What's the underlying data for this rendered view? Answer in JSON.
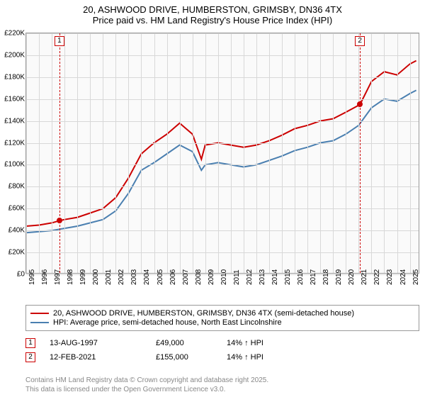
{
  "title": {
    "line1": "20, ASHWOOD DRIVE, HUMBERSTON, GRIMSBY, DN36 4TX",
    "line2": "Price paid vs. HM Land Registry's House Price Index (HPI)",
    "fontsize": 13
  },
  "chart": {
    "type": "line",
    "background_color": "#fafafa",
    "grid_color": "#d8d8d8",
    "border_color": "#999999",
    "x": {
      "min": 1995,
      "max": 2025.8,
      "ticks": [
        1995,
        1996,
        1997,
        1998,
        1999,
        2000,
        2001,
        2002,
        2003,
        2004,
        2005,
        2006,
        2007,
        2008,
        2009,
        2010,
        2011,
        2012,
        2013,
        2014,
        2015,
        2016,
        2017,
        2018,
        2019,
        2020,
        2021,
        2022,
        2023,
        2024,
        2025
      ],
      "labels": [
        "1995",
        "1996",
        "1997",
        "1998",
        "1999",
        "2000",
        "2001",
        "2002",
        "2003",
        "2004",
        "2005",
        "2006",
        "2007",
        "2008",
        "2009",
        "2010",
        "2011",
        "2012",
        "2013",
        "2014",
        "2015",
        "2016",
        "2017",
        "2018",
        "2019",
        "2020",
        "2021",
        "2022",
        "2023",
        "2024",
        "2025"
      ],
      "label_fontsize": 10
    },
    "y": {
      "min": 0,
      "max": 220000,
      "ticks": [
        0,
        20000,
        40000,
        60000,
        80000,
        100000,
        120000,
        140000,
        160000,
        180000,
        200000,
        220000
      ],
      "labels": [
        "£0",
        "£20K",
        "£40K",
        "£60K",
        "£80K",
        "£100K",
        "£120K",
        "£140K",
        "£160K",
        "£180K",
        "£200K",
        "£220K"
      ],
      "label_fontsize": 10
    },
    "series": [
      {
        "name": "property",
        "label": "20, ASHWOOD DRIVE, HUMBERSTON, GRIMSBY, DN36 4TX (semi-detached house)",
        "color": "#cc0000",
        "line_width": 2,
        "points": [
          [
            1995,
            44000
          ],
          [
            1996,
            45000
          ],
          [
            1997,
            47000
          ],
          [
            1997.6,
            49000
          ],
          [
            1998,
            50000
          ],
          [
            1999,
            52000
          ],
          [
            2000,
            56000
          ],
          [
            2001,
            60000
          ],
          [
            2002,
            70000
          ],
          [
            2003,
            88000
          ],
          [
            2004,
            110000
          ],
          [
            2005,
            120000
          ],
          [
            2006,
            128000
          ],
          [
            2007,
            138000
          ],
          [
            2008,
            128000
          ],
          [
            2008.7,
            105000
          ],
          [
            2009,
            118000
          ],
          [
            2010,
            120000
          ],
          [
            2011,
            118000
          ],
          [
            2012,
            116000
          ],
          [
            2013,
            118000
          ],
          [
            2014,
            122000
          ],
          [
            2015,
            127000
          ],
          [
            2016,
            133000
          ],
          [
            2017,
            136000
          ],
          [
            2018,
            140000
          ],
          [
            2019,
            142000
          ],
          [
            2020,
            148000
          ],
          [
            2021.1,
            155000
          ],
          [
            2022,
            176000
          ],
          [
            2023,
            185000
          ],
          [
            2024,
            182000
          ],
          [
            2025,
            192000
          ],
          [
            2025.5,
            195000
          ]
        ]
      },
      {
        "name": "hpi",
        "label": "HPI: Average price, semi-detached house, North East Lincolnshire",
        "color": "#4a7fb0",
        "line_width": 2,
        "points": [
          [
            1995,
            38000
          ],
          [
            1996,
            39000
          ],
          [
            1997,
            40000
          ],
          [
            1998,
            42000
          ],
          [
            1999,
            44000
          ],
          [
            2000,
            47000
          ],
          [
            2001,
            50000
          ],
          [
            2002,
            58000
          ],
          [
            2003,
            74000
          ],
          [
            2004,
            95000
          ],
          [
            2005,
            102000
          ],
          [
            2006,
            110000
          ],
          [
            2007,
            118000
          ],
          [
            2008,
            112000
          ],
          [
            2008.7,
            95000
          ],
          [
            2009,
            100000
          ],
          [
            2010,
            102000
          ],
          [
            2011,
            100000
          ],
          [
            2012,
            98000
          ],
          [
            2013,
            100000
          ],
          [
            2014,
            104000
          ],
          [
            2015,
            108000
          ],
          [
            2016,
            113000
          ],
          [
            2017,
            116000
          ],
          [
            2018,
            120000
          ],
          [
            2019,
            122000
          ],
          [
            2020,
            128000
          ],
          [
            2021,
            136000
          ],
          [
            2022,
            152000
          ],
          [
            2023,
            160000
          ],
          [
            2024,
            158000
          ],
          [
            2025,
            165000
          ],
          [
            2025.5,
            168000
          ]
        ]
      }
    ],
    "markers": [
      {
        "id": "1",
        "x": 1997.6,
        "y": 49000,
        "color": "#cc0000"
      },
      {
        "id": "2",
        "x": 2021.1,
        "y": 155000,
        "color": "#cc0000"
      }
    ]
  },
  "legend": {
    "border_color": "#999999"
  },
  "sales": [
    {
      "marker": "1",
      "marker_color": "#cc0000",
      "date": "13-AUG-1997",
      "price": "£49,000",
      "hpi": "14% ↑ HPI"
    },
    {
      "marker": "2",
      "marker_color": "#cc0000",
      "date": "12-FEB-2021",
      "price": "£155,000",
      "hpi": "14% ↑ HPI"
    }
  ],
  "footer": {
    "line1": "Contains HM Land Registry data © Crown copyright and database right 2025.",
    "line2": "This data is licensed under the Open Government Licence v3.0.",
    "color": "#888888"
  }
}
